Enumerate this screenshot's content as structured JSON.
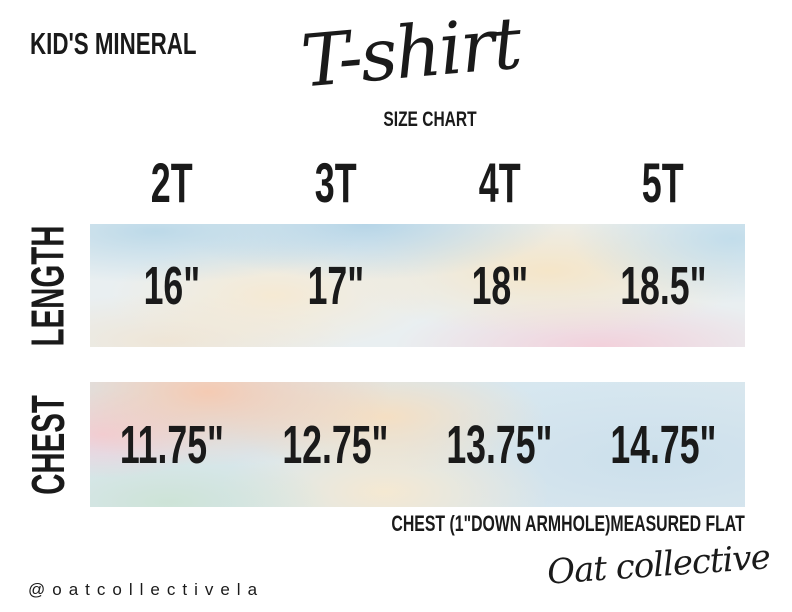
{
  "page": {
    "brand_label": "KID'S MINERAL",
    "title_script": "T-shirt",
    "subtitle": "SIZE CHART",
    "footnote": "CHEST (1\"DOWN ARMHOLE)MEASURED FLAT",
    "social_handle": "@oatcollectivela",
    "signature": "Oat collective"
  },
  "chart_data": {
    "type": "table",
    "title": "Kid's Mineral T-shirt Size Chart",
    "categories": [
      "2T",
      "3T",
      "4T",
      "5T"
    ],
    "rows": [
      {
        "label": "LENGTH",
        "values": [
          "16\"",
          "17\"",
          "18\"",
          "18.5\""
        ]
      },
      {
        "label": "CHEST",
        "values": [
          "11.75\"",
          "12.75\"",
          "13.75\"",
          "14.75\""
        ]
      }
    ],
    "note": "CHEST (1\"DOWN ARMHOLE)MEASURED FLAT",
    "layout_hints": {
      "row_band_style": "pastel watercolor",
      "columns": 4
    }
  },
  "colors": {
    "text": "#1a1a1a",
    "background": "#ffffff",
    "watercolor_palette": [
      "#bcd8e8",
      "#f6e5c6",
      "#f3ced8",
      "#f6c9b0",
      "#cfe3d6",
      "#cfe2ec"
    ]
  }
}
